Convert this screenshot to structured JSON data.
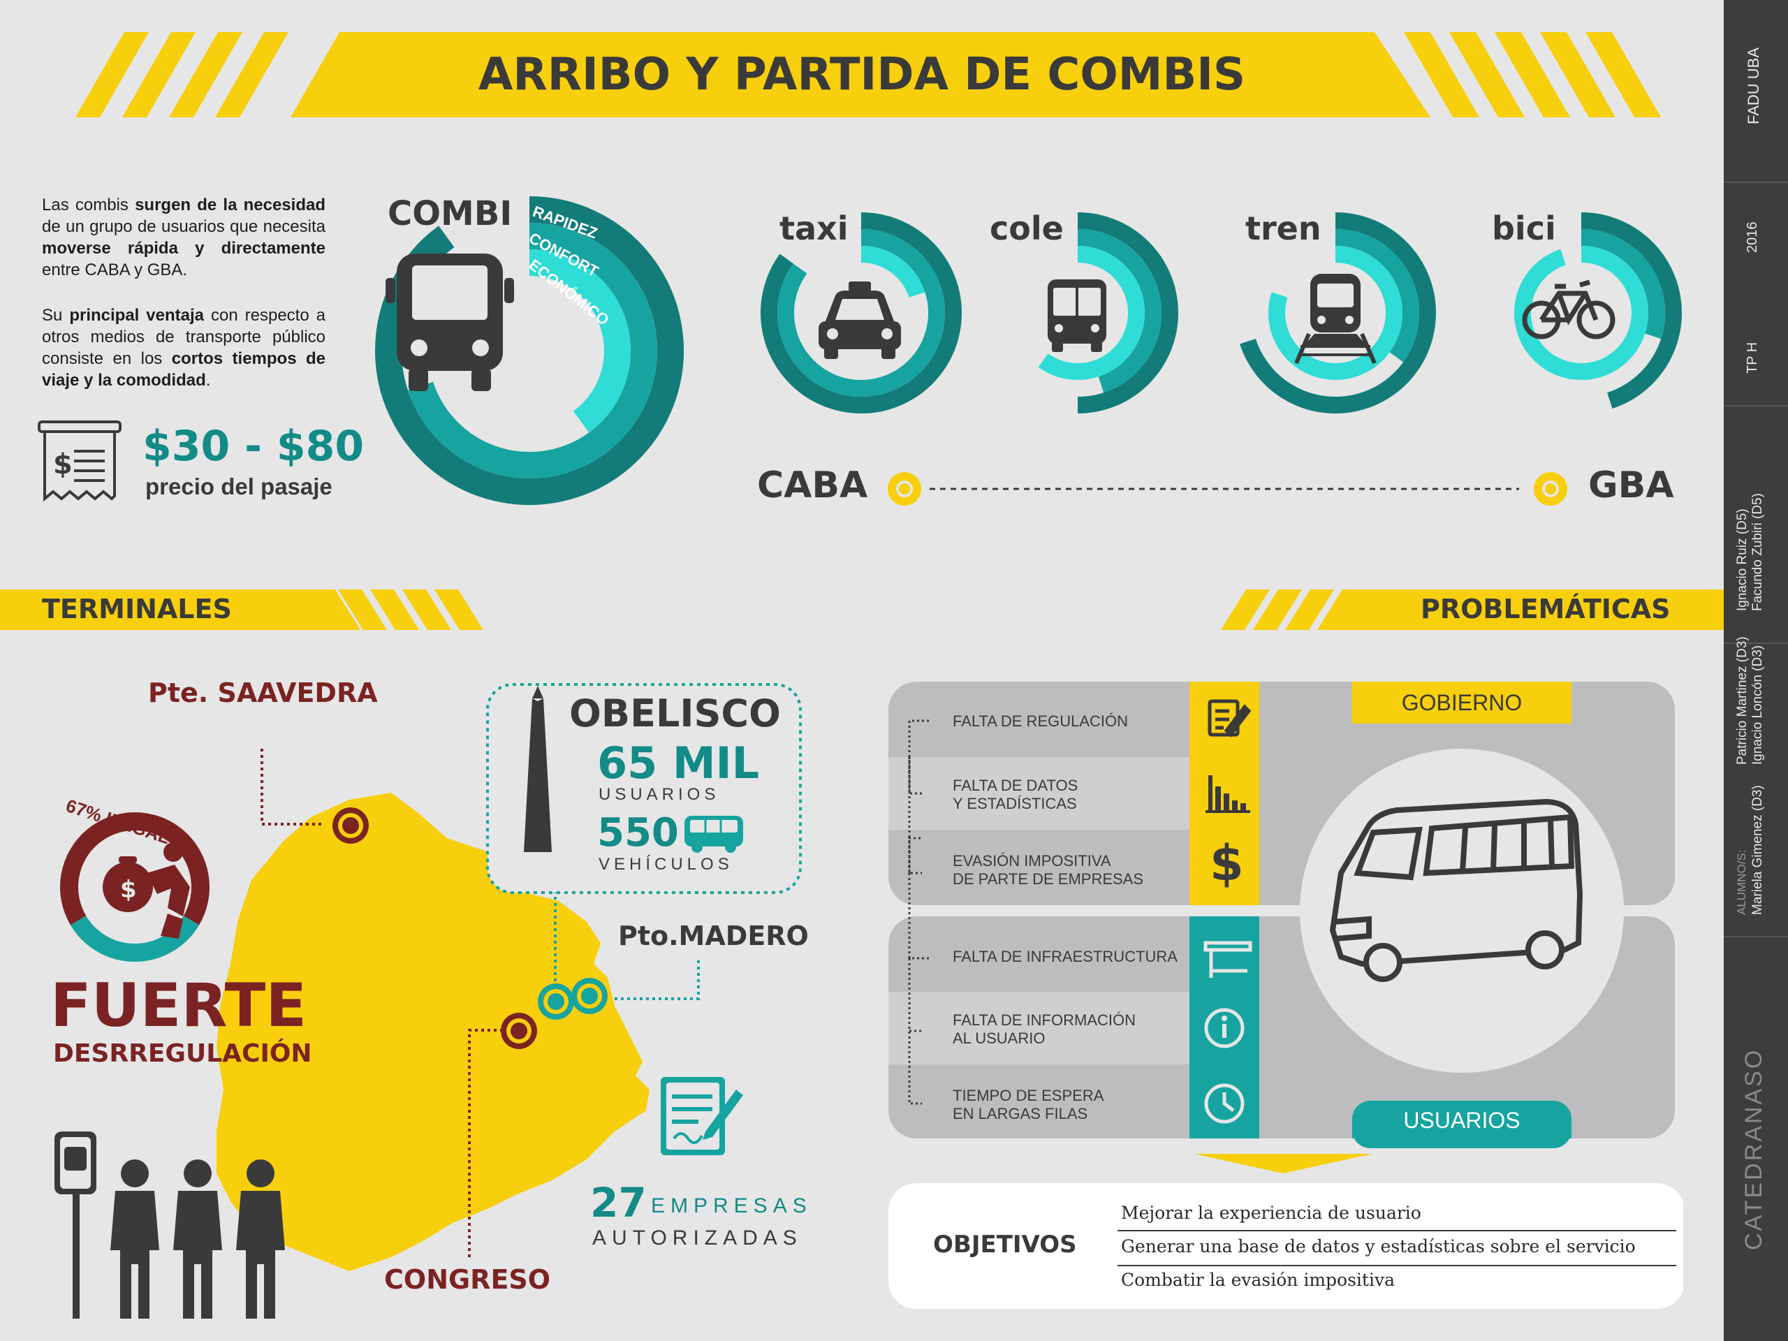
{
  "header": {
    "title": "ARRIBO Y PARTIDA DE COMBIS"
  },
  "sidebar": {
    "fadu": "FADU UBA",
    "year": "2016",
    "tp": "TP H",
    "credits_1": "Ignacio Ruiz (D5)",
    "credits_2": "Facundo Zubiri (D5)",
    "credits_3": "Patricio Martinez (D3)",
    "credits_4": "Ignacio Loncón (D3)",
    "alumnos_label": "ALUMNO/S:",
    "credits_5": "Mariela Gimenez (D3)",
    "catedra": "CATEDRANASO"
  },
  "intro": {
    "p1_a": "Las combis ",
    "p1_b": "surgen de la necesidad",
    "p1_c": " de un grupo de usuarios que necesita ",
    "p1_d": "moverse rápida y directamente",
    "p1_e": " entre CABA y GBA.",
    "p2_a": "Su ",
    "p2_b": "principal ventaja",
    "p2_c": " con respecto a otros medios de transporte público consiste en los ",
    "p2_d": "cortos tiempos de viaje y la comodidad",
    "p2_e": "."
  },
  "price": {
    "range": "$30 - $80",
    "label": "precio del pasaje"
  },
  "ring_labels": {
    "r1": "RAPIDEZ",
    "r2": "CONFORT",
    "r3": "ECONÓMICO"
  },
  "modes": [
    {
      "label": "COMBI",
      "rapidez": 0.9,
      "confort": 0.7,
      "economico": 0.4
    },
    {
      "label": "taxi",
      "rapidez": 0.85,
      "confort": 0.85,
      "economico": 0.2
    },
    {
      "label": "cole",
      "rapidez": 0.5,
      "confort": 0.45,
      "economico": 0.6
    },
    {
      "label": "tren",
      "rapidez": 0.7,
      "confort": 0.35,
      "economico": 0.8
    },
    {
      "label": "bici",
      "rapidez": 0.45,
      "confort": 0.3,
      "economico": 0.95
    }
  ],
  "route": {
    "from": "CABA",
    "to": "GBA"
  },
  "terminales": {
    "title": "TERMINALES",
    "saavedra": "Pte. SAAVEDRA",
    "obelisco": "OBELISCO",
    "usuarios_num": "65 MIL",
    "usuarios_lbl": "USUARIOS",
    "vehiculos_num": "550",
    "vehiculos_lbl": "VEHÍCULOS",
    "madero": "Pto.MADERO",
    "congreso": "CONGRESO",
    "ilegal": "67% ILEGAL",
    "ilegal_fraction": 0.67,
    "fuerte": "FUERTE",
    "desreg": "DESRREGULACIÓN",
    "empresas_num": "27",
    "empresas_lbl1": "EMPRESAS",
    "empresas_lbl2": "AUTORIZADAS"
  },
  "problematicas": {
    "title": "PROBLEMÁTICAS",
    "gobierno": "GOBIERNO",
    "usuarios": "USUARIOS",
    "rows": [
      {
        "l1": "FALTA DE REGULACIÓN",
        "l2": ""
      },
      {
        "l1": "FALTA DE DATOS",
        "l2": "Y ESTADÍSTICAS"
      },
      {
        "l1": "EVASIÓN IMPOSITIVA",
        "l2": "DE PARTE DE EMPRESAS"
      },
      {
        "l1": "FALTA DE INFRAESTRUCTURA",
        "l2": ""
      },
      {
        "l1": "FALTA DE INFORMACIÓN",
        "l2": "AL USUARIO"
      },
      {
        "l1": "TIEMPO DE ESPERA",
        "l2": "EN LARGAS FILAS"
      }
    ]
  },
  "objetivos": {
    "title": "OBJETIVOS",
    "items": [
      "Mejorar la experiencia de usuario",
      "Generar una base de datos y estadísticas sobre el servicio",
      "Combatir la evasión impositiva"
    ]
  },
  "colors": {
    "yellow": "#f7cf0c",
    "teal_dark": "#137c78",
    "teal_mid": "#17a4a0",
    "teal_light": "#2fdcd6",
    "maroon": "#7b2323"
  }
}
